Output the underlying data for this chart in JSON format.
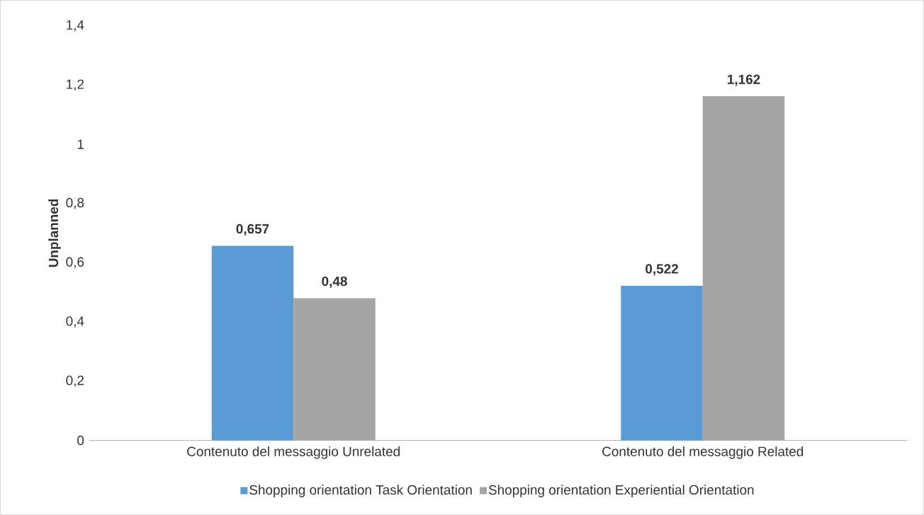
{
  "chart_data": {
    "type": "bar",
    "ylabel": "Unplanned",
    "categories": [
      "Contenuto del messaggio Unrelated",
      "Contenuto del messaggio Related"
    ],
    "series": [
      {
        "name": "Shopping orientation Task Orientation",
        "color": "#5b9bd5",
        "values": [
          0.657,
          0.522
        ],
        "value_labels": [
          "0,657",
          "0,522"
        ]
      },
      {
        "name": "Shopping orientation Experiential Orientation",
        "color": "#a5a5a5",
        "values": [
          0.48,
          1.162
        ],
        "value_labels": [
          "0,48",
          "1,162"
        ]
      }
    ],
    "ylim": [
      0,
      1.4
    ],
    "yticks": [
      0,
      {
        "value": 0.2,
        "label": "0,2"
      },
      {
        "value": 0.4,
        "label": "0,4"
      },
      {
        "value": 0.6,
        "label": "0,6"
      },
      {
        "value": 0.8,
        "label": "0,8"
      },
      1,
      {
        "value": 1.2,
        "label": "1,2"
      },
      {
        "value": 1.4,
        "label": "1,4"
      }
    ],
    "grid": false,
    "legend": "bottom"
  }
}
